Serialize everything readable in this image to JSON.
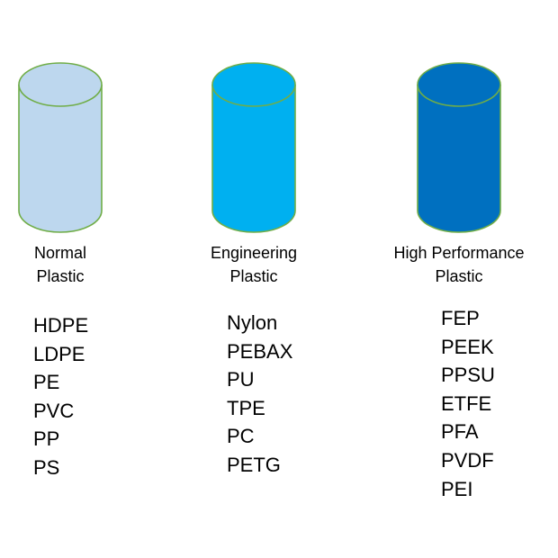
{
  "categories": [
    {
      "label_lines": [
        "Normal",
        "Plastic"
      ],
      "color": "#bdd7ee",
      "stroke": "#70ad47",
      "materials": [
        "HDPE",
        "LDPE",
        "PE",
        "PVC",
        "PP",
        "PS"
      ]
    },
    {
      "label_lines": [
        "Engineering",
        "Plastic"
      ],
      "color": "#00b0f0",
      "stroke": "#70ad47",
      "materials": [
        "Nylon",
        "PEBAX",
        "PU",
        "TPE",
        "PC",
        "PETG"
      ]
    },
    {
      "label_lines": [
        "High Performance",
        "Plastic"
      ],
      "color": "#0070c0",
      "stroke": "#70ad47",
      "materials": [
        "FEP",
        "PEEK",
        "PPSU",
        "ETFE",
        "PFA",
        "PVDF",
        "PEI"
      ]
    }
  ]
}
